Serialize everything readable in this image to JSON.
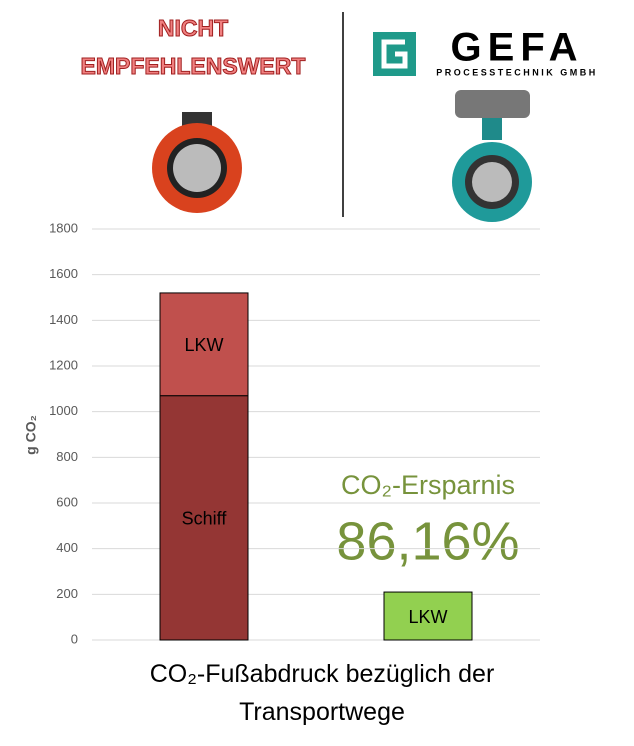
{
  "header": {
    "warning": [
      "NICHT",
      "EMPFEHLENSWERT"
    ],
    "brand": "GEFA",
    "brand_subtitle": "PROCESSTECHNIK GMBH"
  },
  "chart_data": {
    "type": "stacked_bar",
    "title": "CO₂-Fußabdruck bezüglich der Transportwege",
    "y_label": "g CO₂",
    "categories": [
      null,
      null
    ],
    "series": [
      {
        "name": "Schiff",
        "colors": [
          "#943634",
          "#943634"
        ],
        "values": [
          1070,
          null
        ]
      },
      {
        "name": "LKW",
        "colors": [
          "#c0504d",
          "#92d050"
        ],
        "values": [
          450,
          210
        ]
      }
    ],
    "annotations": [
      "CO₂-Ersparnis",
      "86,16%"
    ],
    "ylim": [
      0,
      1800
    ],
    "yticks": [
      0,
      200,
      400,
      600,
      800,
      1000,
      1200,
      1400,
      1600,
      1800
    ],
    "grid": true
  }
}
